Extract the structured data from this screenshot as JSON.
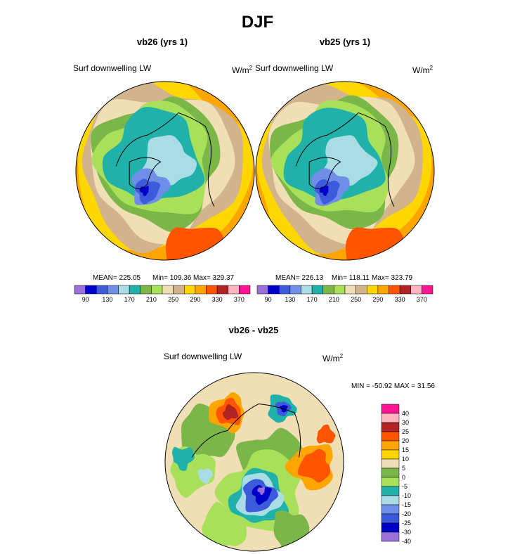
{
  "figure": {
    "title": "DJF"
  },
  "panels": [
    {
      "title": "vb26 (yrs 1)",
      "variable": "Surf downwelling LW",
      "units_base": "W/m",
      "units_exp": "2",
      "stats": {
        "mean": "MEAN= 225.05",
        "min": "Min= 109.36",
        "max": "Max= 329.37"
      }
    },
    {
      "title": "vb25 (yrs 1)",
      "variable": "Surf downwelling LW",
      "units_base": "W/m",
      "units_exp": "2",
      "stats": {
        "mean": "MEAN= 226.13",
        "min": "Min= 118.11",
        "max": "Max= 323.79"
      }
    },
    {
      "title": "vb26 - vb25",
      "variable": "Surf downwelling LW",
      "units_base": "W/m",
      "units_exp": "2",
      "stats": {
        "minmax": "MIN = -50.92 MAX =  31.56"
      }
    }
  ],
  "chart_data": [
    {
      "type": "heatmap",
      "projection": "north-polar-stereographic",
      "title": "vb26 (yrs 1)",
      "variable": "Surf downwelling LW",
      "units": "W/m2",
      "mean": 225.05,
      "min": 109.36,
      "max": 329.37,
      "colorbar": {
        "levels": [
          90,
          110,
          130,
          150,
          170,
          190,
          210,
          230,
          250,
          270,
          290,
          310,
          330,
          350,
          370
        ],
        "tick_labels": [
          "90",
          "130",
          "170",
          "210",
          "250",
          "290",
          "330",
          "370"
        ],
        "colors": [
          "#9b6fd9",
          "#0000c8",
          "#3c5adc",
          "#6e8ee8",
          "#aadce6",
          "#20b2aa",
          "#7ab648",
          "#a8e05a",
          "#f0deb4",
          "#d2b48c",
          "#ffd700",
          "#ffa500",
          "#ff5500",
          "#b22222",
          "#ffb6c1",
          "#ff1493"
        ]
      }
    },
    {
      "type": "heatmap",
      "projection": "north-polar-stereographic",
      "title": "vb25 (yrs 1)",
      "variable": "Surf downwelling LW",
      "units": "W/m2",
      "mean": 226.13,
      "min": 118.11,
      "max": 323.79,
      "colorbar": {
        "levels": [
          90,
          110,
          130,
          150,
          170,
          190,
          210,
          230,
          250,
          270,
          290,
          310,
          330,
          350,
          370
        ],
        "tick_labels": [
          "90",
          "130",
          "170",
          "210",
          "250",
          "290",
          "330",
          "370"
        ],
        "colors": [
          "#9b6fd9",
          "#0000c8",
          "#3c5adc",
          "#6e8ee8",
          "#aadce6",
          "#20b2aa",
          "#7ab648",
          "#a8e05a",
          "#f0deb4",
          "#d2b48c",
          "#ffd700",
          "#ffa500",
          "#ff5500",
          "#b22222",
          "#ffb6c1",
          "#ff1493"
        ]
      }
    },
    {
      "type": "heatmap",
      "projection": "north-polar-stereographic",
      "title": "vb26 - vb25",
      "variable": "Surf downwelling LW",
      "units": "W/m2",
      "min": -50.92,
      "max": 31.56,
      "colorbar": {
        "orientation": "vertical",
        "levels": [
          -40,
          -30,
          -25,
          -20,
          -15,
          -10,
          -5,
          0,
          5,
          10,
          15,
          20,
          25,
          30,
          40
        ],
        "tick_labels": [
          "40",
          "30",
          "25",
          "20",
          "15",
          "10",
          "5",
          "0",
          "-5",
          "-10",
          "-15",
          "-20",
          "-25",
          "-30",
          "-40"
        ],
        "colors": [
          "#9b6fd9",
          "#0000c8",
          "#3c5adc",
          "#6e8ee8",
          "#aadce6",
          "#20b2aa",
          "#a8e05a",
          "#7ab648",
          "#f0deb4",
          "#ffd700",
          "#ffa500",
          "#ff5500",
          "#b22222",
          "#ffb6c1",
          "#ff1493"
        ]
      }
    }
  ]
}
